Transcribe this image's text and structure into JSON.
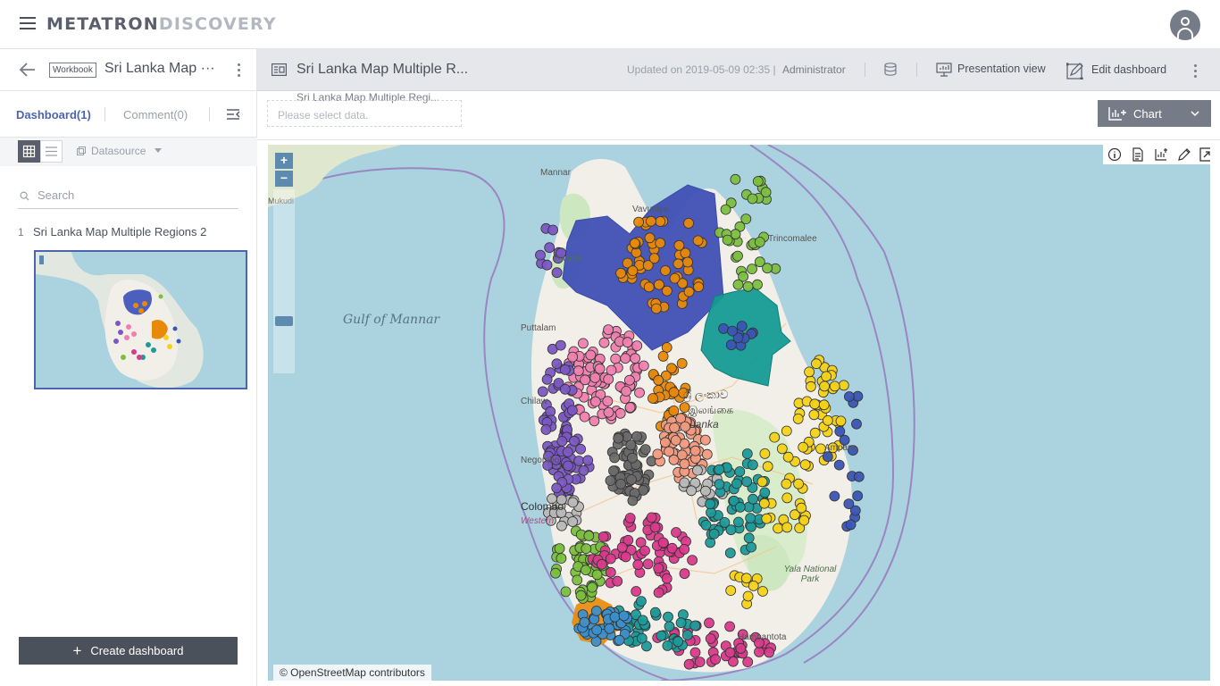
{
  "app": {
    "brand_part1": "METATRON",
    "brand_part2": "DISCOVERY"
  },
  "workbook": {
    "badge": "Workbook",
    "title": "Sri Lanka Map ···"
  },
  "left_tabs": {
    "dashboard": "Dashboard(1)",
    "comment": "Comment(0)"
  },
  "tools": {
    "datasource": "Datasource"
  },
  "search": {
    "placeholder": "Search"
  },
  "dashboards": [
    {
      "num": "1",
      "name": "Sri Lanka Map Multiple Regions 2"
    }
  ],
  "create_button": "Create dashboard",
  "dashboard_header": {
    "title": "Sri Lanka Map Multiple R...",
    "updated": "Updated on 2019-05-09 02:35 |",
    "user": "Administrator",
    "presentation": "Presentation view",
    "edit": "Edit dashboard"
  },
  "filter": {
    "widget_label": "Sri Lanka Map Multiple Regi...",
    "placeholder": "Please select data."
  },
  "chart_button": "Chart",
  "map": {
    "labels": {
      "gulf": "Gulf of Mannar",
      "mannar": "Mannar",
      "vavuniya": "Vavuniya",
      "trincomalee": "Trincomalee",
      "puttalam": "Puttalam",
      "chilaw": "Chilaw",
      "negombo": "Negombo",
      "colombo": "Colombo",
      "western": "Western",
      "yala": "Yala National Park",
      "hambantota": "Hambantota",
      "ampara": "Ampara",
      "lanka_si": "ශ්‍රී ලංකාව",
      "lanka_ta": "இலங்கை",
      "lanka_en": "Lanka",
      "mullaitivu": "Mukudi",
      "wilpattu": "Wilpattu"
    },
    "attribution": "© OpenStreetMap contributors",
    "colors": {
      "sea": "#aad3df",
      "land": "#f2efe9",
      "purple": "#7b57c4",
      "pink": "#ef7fae",
      "orange": "#e8890a",
      "teal": "#1e9a9a",
      "dark_teal": "#0f9593",
      "blue": "#3a55b4",
      "yellow": "#f4d217",
      "green": "#7cbf3f",
      "grey": "#6a6a6a",
      "light_grey": "#b9b9b9",
      "salmon": "#f19a80",
      "magenta": "#d93a8b",
      "steel_blue": "#3d8fcb"
    }
  }
}
